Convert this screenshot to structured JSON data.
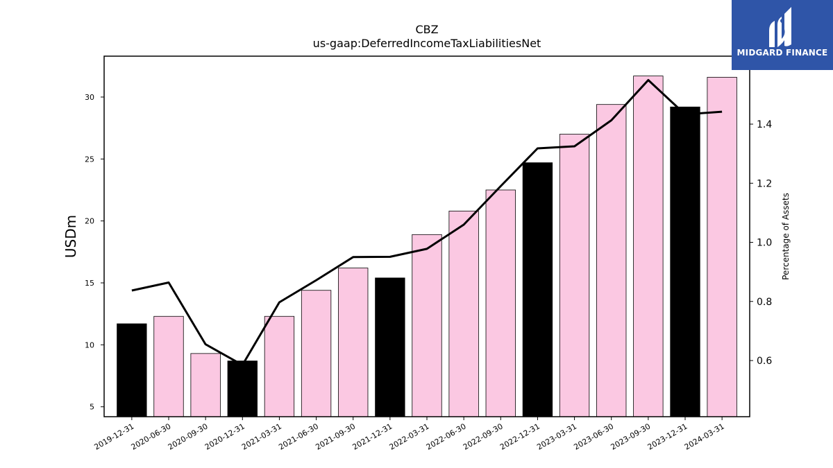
{
  "logo": {
    "text": "MIDGARD FINANCE",
    "background": "#2f55a8"
  },
  "chart_data": {
    "type": "bar",
    "title": "CBZ",
    "subtitle": "us-gaap:DeferredIncomeTaxLiabilitiesNet",
    "ylabel": "USDm",
    "y2label": "Percentage of Assets",
    "ylim": [
      4.2,
      33.3
    ],
    "y2lim": [
      0.41,
      1.63
    ],
    "yticks": [
      5,
      10,
      15,
      20,
      25,
      30
    ],
    "y2ticks": [
      0.6,
      0.8,
      1.0,
      1.2,
      1.4
    ],
    "y2tick_labels": [
      "0.6",
      "0.8",
      "1.0",
      "1.2",
      "1.4"
    ],
    "categories": [
      "2019-12-31",
      "2020-06-30",
      "2020-09-30",
      "2020-12-31",
      "2021-03-31",
      "2021-06-30",
      "2021-09-30",
      "2021-12-31",
      "2022-03-31",
      "2022-06-30",
      "2022-09-30",
      "2022-12-31",
      "2023-03-31",
      "2023-06-30",
      "2023-09-30",
      "2023-12-31",
      "2024-03-31"
    ],
    "series": [
      {
        "kind": "bar",
        "axis": "left",
        "values": [
          11.7,
          12.3,
          9.3,
          8.7,
          12.3,
          14.4,
          16.2,
          15.4,
          18.9,
          20.8,
          22.5,
          24.7,
          27.0,
          29.4,
          31.7,
          29.2,
          31.6
        ],
        "colors": [
          "#000000",
          "#fbc8e2",
          "#fbc8e2",
          "#000000",
          "#fbc8e2",
          "#fbc8e2",
          "#fbc8e2",
          "#000000",
          "#fbc8e2",
          "#fbc8e2",
          "#fbc8e2",
          "#000000",
          "#fbc8e2",
          "#fbc8e2",
          "#fbc8e2",
          "#000000",
          "#fbc8e2"
        ]
      },
      {
        "kind": "line",
        "axis": "right",
        "color": "#000000",
        "values": [
          0.837,
          0.864,
          0.655,
          0.585,
          0.797,
          0.872,
          0.95,
          0.951,
          0.978,
          1.06,
          1.19,
          1.318,
          1.325,
          1.413,
          1.549,
          1.433,
          1.442
        ]
      }
    ],
    "grid": false,
    "legend": "none"
  }
}
